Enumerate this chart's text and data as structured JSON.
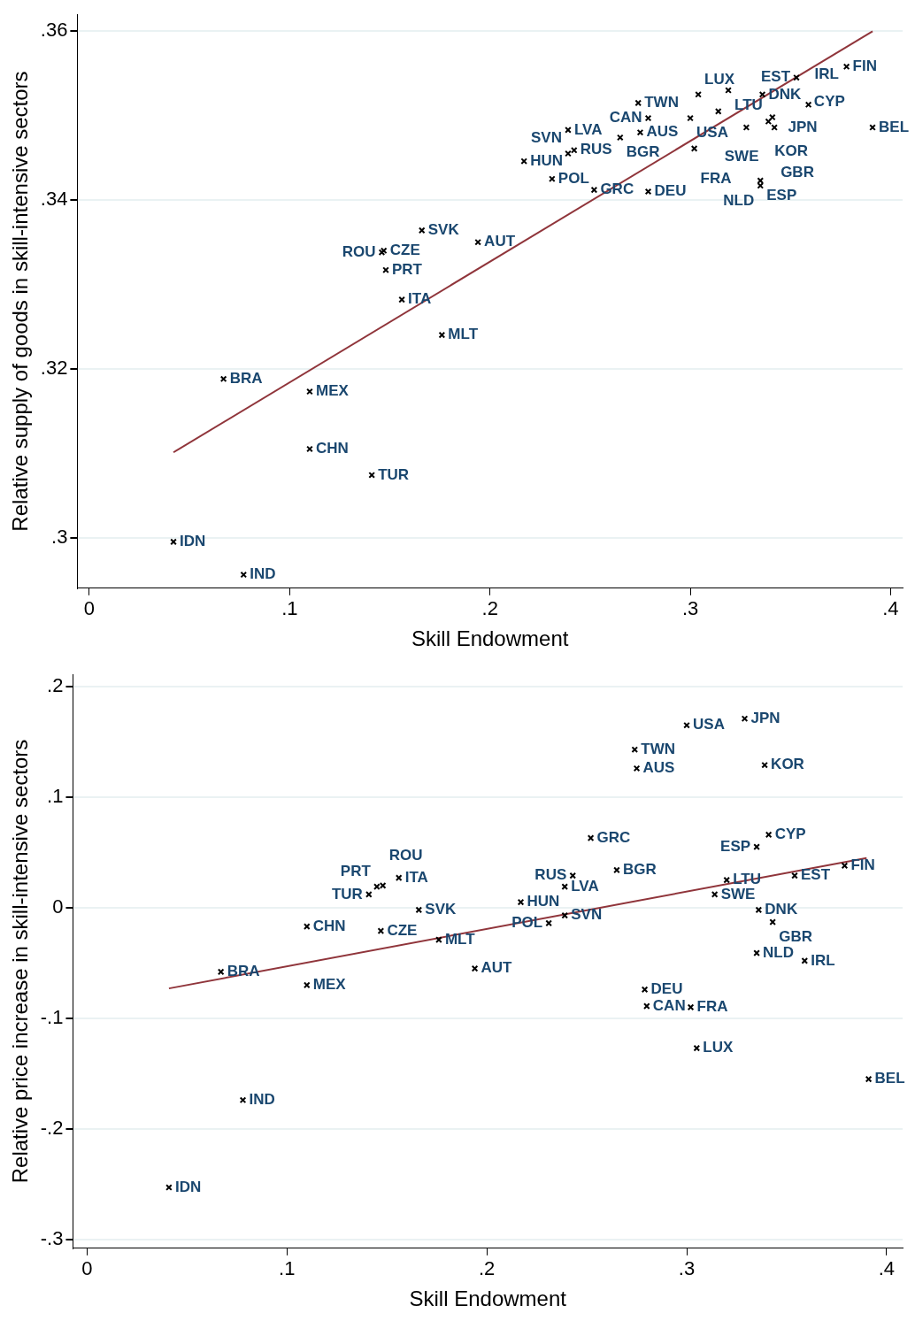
{
  "chart_data": [
    {
      "type": "scatter",
      "xlabel": "Skill Endowment",
      "ylabel": "Relative supply of goods in skill-intensive sectors",
      "xlim": [
        -0.006,
        0.406
      ],
      "ylim": [
        0.294,
        0.362
      ],
      "xticks": [
        0,
        {
          "value": 0.1,
          "label": ".1"
        },
        {
          "value": 0.2,
          "label": ".2"
        },
        {
          "value": 0.3,
          "label": ".3"
        },
        {
          "value": 0.4,
          "label": ".4"
        }
      ],
      "yticks": [
        {
          "value": 0.3,
          "label": ".3"
        },
        {
          "value": 0.32,
          "label": ".32"
        },
        {
          "value": 0.34,
          "label": ".34"
        },
        {
          "value": 0.36,
          "label": ".36"
        }
      ],
      "grid": "y",
      "legend": false,
      "marker": "cross",
      "series": [
        {
          "color": "#000000",
          "x": [
            0.042,
            0.077,
            0.067,
            0.11,
            0.11,
            0.141,
            0.176,
            0.156,
            0.148,
            0.147,
            0.146,
            0.166,
            0.194,
            0.231,
            0.217,
            0.252,
            0.279,
            0.242,
            0.239,
            0.239,
            0.265,
            0.275,
            0.279,
            0.274,
            0.3,
            0.304,
            0.319,
            0.314,
            0.302,
            0.336,
            0.328,
            0.339,
            0.341,
            0.342,
            0.359,
            0.353,
            0.378,
            0.391,
            0.335,
            0.335
          ],
          "values": [
            0.2995,
            0.2956,
            0.3188,
            0.3173,
            0.3105,
            0.3074,
            0.324,
            0.3282,
            0.3317,
            0.334,
            0.3338,
            0.3364,
            0.335,
            0.3425,
            0.3446,
            0.3412,
            0.341,
            0.3459,
            0.3455,
            0.3483,
            0.3474,
            0.348,
            0.3497,
            0.3515,
            0.3497,
            0.3525,
            0.353,
            0.3505,
            0.3461,
            0.3525,
            0.3486,
            0.3493,
            0.3498,
            0.3486,
            0.3513,
            0.3545,
            0.3558,
            0.3486,
            0.3423,
            0.3417
          ]
        },
        {
          "type": "line",
          "color": "#90353b",
          "marker": "none",
          "x": [
            0.042,
            0.391
          ],
          "values": [
            0.3101,
            0.36
          ]
        }
      ],
      "annotations": [
        {
          "text": "IDN",
          "x": 0.042,
          "y": 0.2995
        },
        {
          "text": "IND",
          "x": 0.077,
          "y": 0.2956
        },
        {
          "text": "BRA",
          "x": 0.067,
          "y": 0.3188
        },
        {
          "text": "MEX",
          "x": 0.11,
          "y": 0.3173
        },
        {
          "text": "CHN",
          "x": 0.11,
          "y": 0.3105
        },
        {
          "text": "TUR",
          "x": 0.141,
          "y": 0.3074
        },
        {
          "text": "MLT",
          "x": 0.176,
          "y": 0.324
        },
        {
          "text": "ITA",
          "x": 0.156,
          "y": 0.3282
        },
        {
          "text": "PRT",
          "x": 0.148,
          "y": 0.3317
        },
        {
          "text": "CZE",
          "x": 0.147,
          "y": 0.334
        },
        {
          "text": "ROU",
          "x": 0.146,
          "y": 0.3338
        },
        {
          "text": "SVK",
          "x": 0.166,
          "y": 0.3364
        },
        {
          "text": "AUT",
          "x": 0.194,
          "y": 0.335
        },
        {
          "text": "POL",
          "x": 0.231,
          "y": 0.3425
        },
        {
          "text": "HUN",
          "x": 0.217,
          "y": 0.3446
        },
        {
          "text": "GRC",
          "x": 0.252,
          "y": 0.3412
        },
        {
          "text": "DEU",
          "x": 0.279,
          "y": 0.341
        },
        {
          "text": "RUS",
          "x": 0.242,
          "y": 0.3459
        },
        {
          "text": "SVN",
          "x": 0.239,
          "y": 0.3455
        },
        {
          "text": "LVA",
          "x": 0.239,
          "y": 0.3483
        },
        {
          "text": "BGR",
          "x": 0.265,
          "y": 0.3474
        },
        {
          "text": "AUS",
          "x": 0.275,
          "y": 0.348
        },
        {
          "text": "CAN",
          "x": 0.279,
          "y": 0.3497
        },
        {
          "text": "TWN",
          "x": 0.274,
          "y": 0.3515
        },
        {
          "text": "USA",
          "x": 0.3,
          "y": 0.3497
        },
        {
          "text": "LUX",
          "x": 0.304,
          "y": 0.3525
        },
        {
          "text": "LTU",
          "x": 0.319,
          "y": 0.353
        },
        {
          "text": "SWE",
          "x": 0.314,
          "y": 0.3505
        },
        {
          "text": "FRA",
          "x": 0.302,
          "y": 0.3461
        },
        {
          "text": "DNK",
          "x": 0.336,
          "y": 0.3525
        },
        {
          "text": "JPN",
          "x": 0.328,
          "y": 0.3486
        },
        {
          "text": "KOR",
          "x": 0.339,
          "y": 0.3493
        },
        {
          "text": "CYP",
          "x": 0.341,
          "y": 0.3498
        },
        {
          "text": "GBR",
          "x": 0.342,
          "y": 0.3486
        },
        {
          "text": "IRL",
          "x": 0.359,
          "y": 0.3513
        },
        {
          "text": "EST",
          "x": 0.353,
          "y": 0.3545
        },
        {
          "text": "FIN",
          "x": 0.378,
          "y": 0.3558
        },
        {
          "text": "BEL",
          "x": 0.391,
          "y": 0.3486
        },
        {
          "text": "ESP",
          "x": 0.335,
          "y": 0.3423
        },
        {
          "text": "NLD",
          "x": 0.335,
          "y": 0.3417
        }
      ]
    },
    {
      "type": "scatter",
      "xlabel": "Skill Endowment",
      "ylabel": "Relative price increase in skill-intensive sectors",
      "xlim": [
        -0.007,
        0.408
      ],
      "ylim": [
        -0.308,
        0.211
      ],
      "xticks": [
        0,
        {
          "value": 0.1,
          "label": ".1"
        },
        {
          "value": 0.2,
          "label": ".2"
        },
        {
          "value": 0.3,
          "label": ".3"
        },
        {
          "value": 0.4,
          "label": ".4"
        }
      ],
      "yticks": [
        {
          "value": -0.3,
          "label": "-.3"
        },
        {
          "value": -0.2,
          "label": "-.2"
        },
        {
          "value": -0.1,
          "label": "-.1"
        },
        0,
        {
          "value": 0.1,
          "label": ".1"
        },
        {
          "value": 0.2,
          "label": ".2"
        }
      ],
      "grid": "y",
      "legend": false,
      "marker": "cross",
      "series": [
        {
          "color": "#000000",
          "x": [
            0.041,
            0.078,
            0.067,
            0.11,
            0.11,
            0.147,
            0.166,
            0.176,
            0.194,
            0.141,
            0.156,
            0.145,
            0.148,
            0.217,
            0.231,
            0.239,
            0.239,
            0.243,
            0.265,
            0.279,
            0.28,
            0.3,
            0.329,
            0.274,
            0.275,
            0.339,
            0.252,
            0.341,
            0.335,
            0.379,
            0.354,
            0.32,
            0.314,
            0.336,
            0.343,
            0.335,
            0.359,
            0.302,
            0.305,
            0.391
          ],
          "values": [
            -0.253,
            -0.174,
            -0.058,
            -0.07,
            -0.017,
            -0.021,
            -0.002,
            -0.029,
            -0.055,
            0.012,
            0.027,
            0.019,
            0.02,
            0.005,
            -0.014,
            -0.007,
            0.019,
            0.029,
            0.034,
            -0.074,
            -0.089,
            0.165,
            0.171,
            0.143,
            0.126,
            0.129,
            0.063,
            0.066,
            0.055,
            0.038,
            0.029,
            0.025,
            0.012,
            -0.002,
            -0.013,
            -0.041,
            -0.048,
            -0.09,
            -0.127,
            -0.155
          ]
        },
        {
          "type": "line",
          "color": "#90353b",
          "marker": "none",
          "x": [
            0.041,
            0.39
          ],
          "values": [
            -0.073,
            0.045
          ]
        }
      ],
      "annotations": [
        {
          "text": "IDN",
          "x": 0.041,
          "y": -0.253
        },
        {
          "text": "IND",
          "x": 0.078,
          "y": -0.174
        },
        {
          "text": "BRA",
          "x": 0.067,
          "y": -0.058
        },
        {
          "text": "MEX",
          "x": 0.11,
          "y": -0.07
        },
        {
          "text": "CHN",
          "x": 0.11,
          "y": -0.017
        },
        {
          "text": "CZE",
          "x": 0.147,
          "y": -0.021
        },
        {
          "text": "SVK",
          "x": 0.166,
          "y": -0.002
        },
        {
          "text": "MLT",
          "x": 0.176,
          "y": -0.029
        },
        {
          "text": "AUT",
          "x": 0.194,
          "y": -0.055
        },
        {
          "text": "TUR",
          "x": 0.141,
          "y": 0.012
        },
        {
          "text": "ITA",
          "x": 0.156,
          "y": 0.027
        },
        {
          "text": "PRT",
          "x": 0.145,
          "y": 0.019
        },
        {
          "text": "ROU",
          "x": 0.148,
          "y": 0.02
        },
        {
          "text": "HUN",
          "x": 0.217,
          "y": 0.005
        },
        {
          "text": "POL",
          "x": 0.231,
          "y": -0.014
        },
        {
          "text": "SVN",
          "x": 0.239,
          "y": -0.007
        },
        {
          "text": "LVA",
          "x": 0.239,
          "y": 0.019
        },
        {
          "text": "RUS",
          "x": 0.243,
          "y": 0.029
        },
        {
          "text": "BGR",
          "x": 0.265,
          "y": 0.034
        },
        {
          "text": "DEU",
          "x": 0.279,
          "y": -0.074
        },
        {
          "text": "CAN",
          "x": 0.28,
          "y": -0.089
        },
        {
          "text": "USA",
          "x": 0.3,
          "y": 0.165
        },
        {
          "text": "JPN",
          "x": 0.329,
          "y": 0.171
        },
        {
          "text": "TWN",
          "x": 0.274,
          "y": 0.143
        },
        {
          "text": "AUS",
          "x": 0.275,
          "y": 0.126
        },
        {
          "text": "KOR",
          "x": 0.339,
          "y": 0.129
        },
        {
          "text": "GRC",
          "x": 0.252,
          "y": 0.063
        },
        {
          "text": "CYP",
          "x": 0.341,
          "y": 0.066
        },
        {
          "text": "ESP",
          "x": 0.335,
          "y": 0.055
        },
        {
          "text": "FIN",
          "x": 0.379,
          "y": 0.038
        },
        {
          "text": "EST",
          "x": 0.354,
          "y": 0.029
        },
        {
          "text": "LTU",
          "x": 0.32,
          "y": 0.025
        },
        {
          "text": "SWE",
          "x": 0.314,
          "y": 0.012
        },
        {
          "text": "DNK",
          "x": 0.336,
          "y": -0.002
        },
        {
          "text": "GBR",
          "x": 0.343,
          "y": -0.013
        },
        {
          "text": "NLD",
          "x": 0.335,
          "y": -0.041
        },
        {
          "text": "IRL",
          "x": 0.359,
          "y": -0.048
        },
        {
          "text": "FRA",
          "x": 0.302,
          "y": -0.09
        },
        {
          "text": "LUX",
          "x": 0.305,
          "y": -0.127
        },
        {
          "text": "BEL",
          "x": 0.391,
          "y": -0.155
        }
      ]
    }
  ]
}
